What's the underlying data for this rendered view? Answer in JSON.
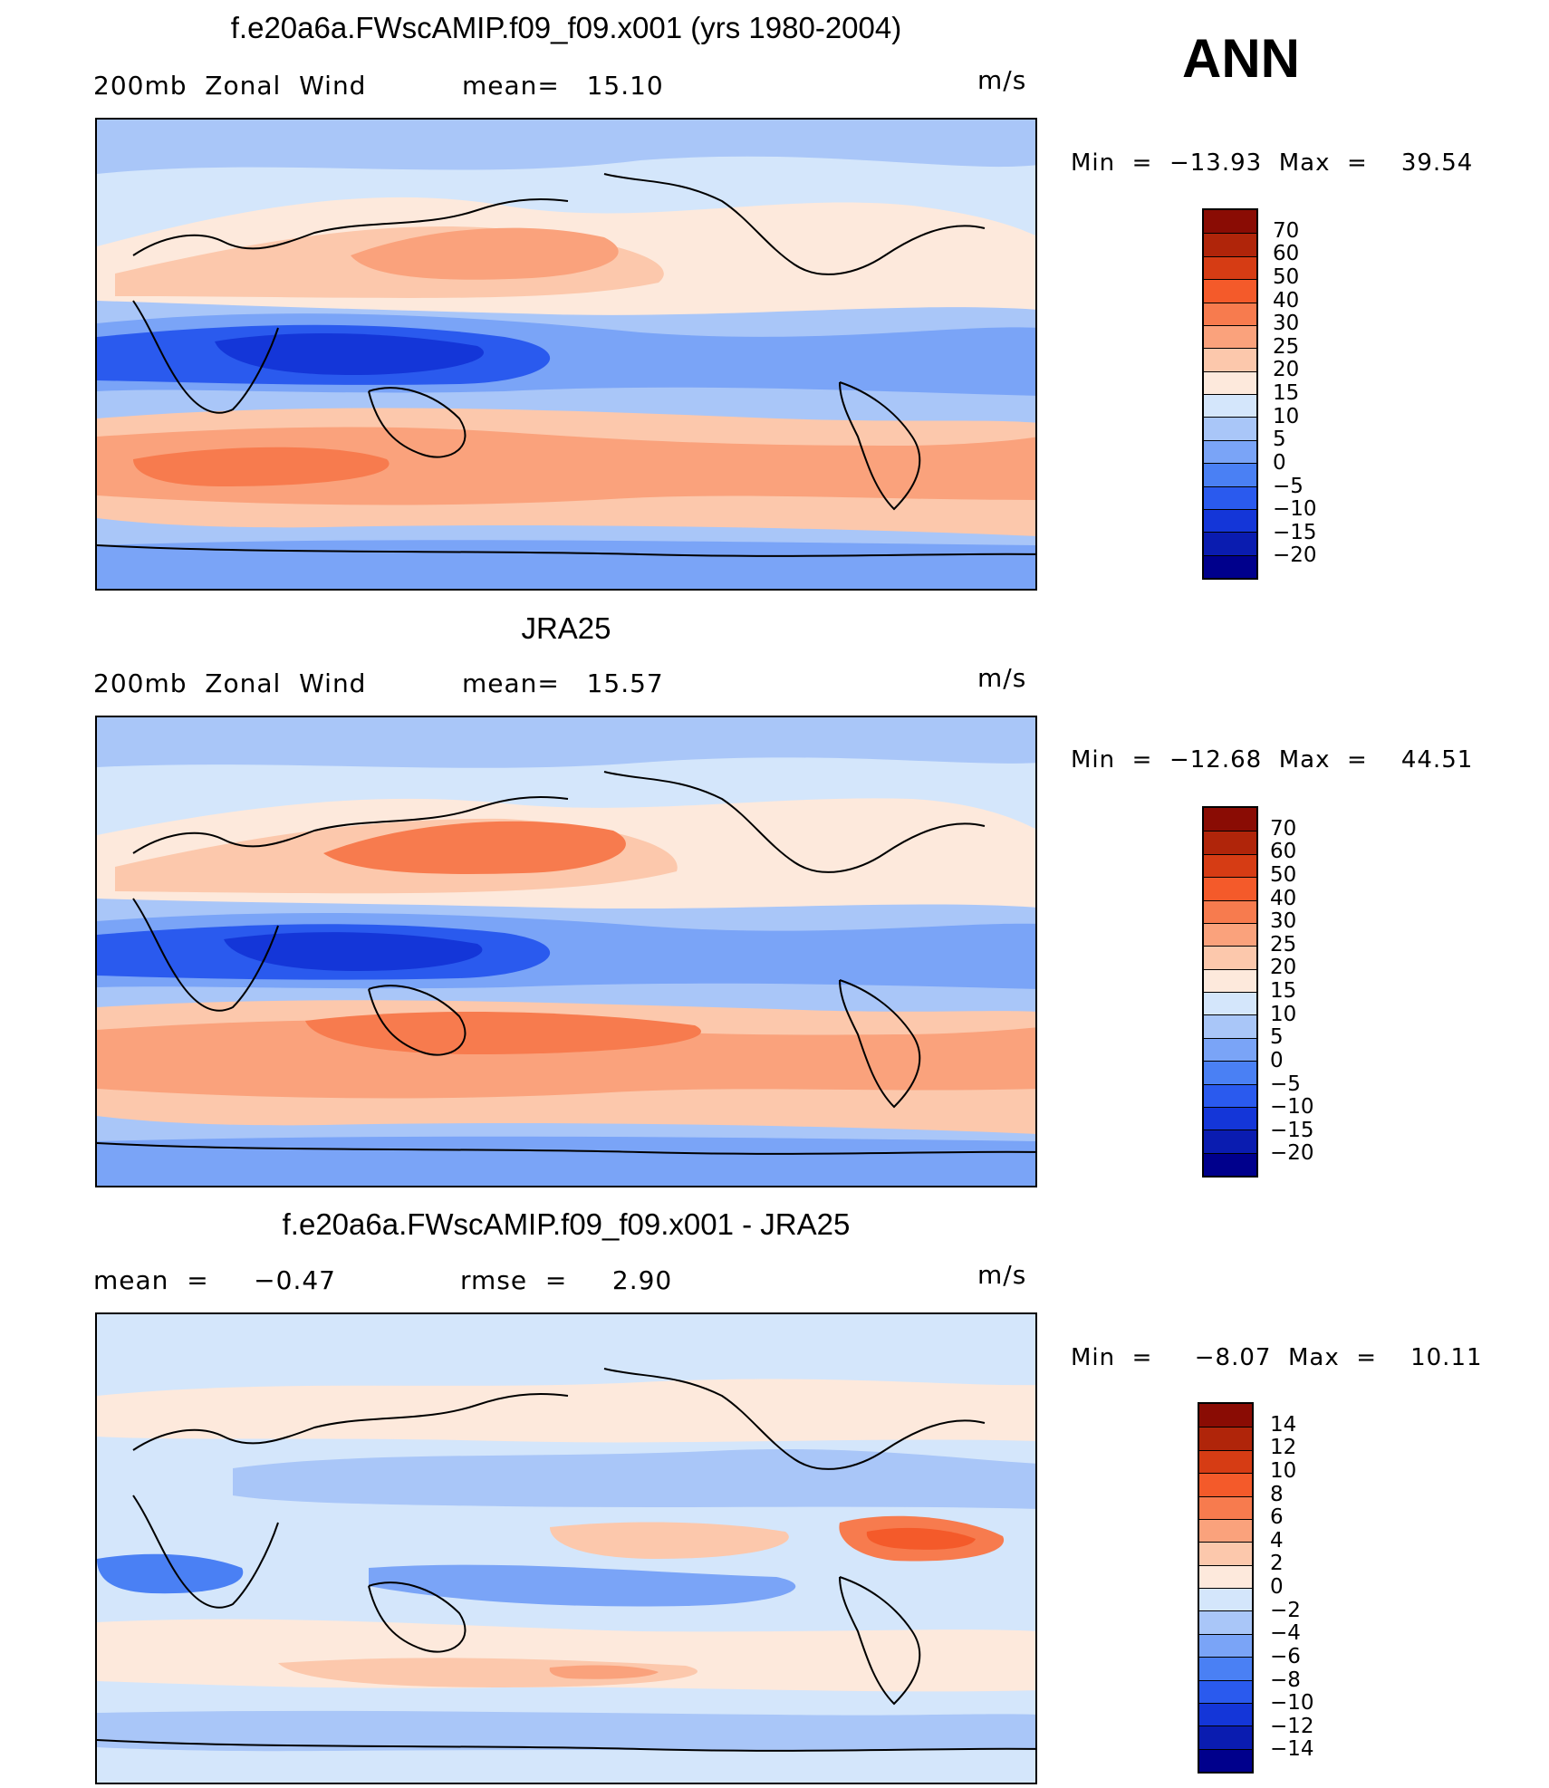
{
  "season": "ANN",
  "palettes": {
    "abs": [
      "#00008c",
      "#0a1cb0",
      "#1436d8",
      "#2a5aee",
      "#4a80f4",
      "#7aa4f7",
      "#a9c6f8",
      "#d4e6fb",
      "#fde9dc",
      "#fcc8ac",
      "#faa27c",
      "#f77b4e",
      "#f45a2a",
      "#d63c14",
      "#b0250a",
      "#8a0c04"
    ],
    "diff": [
      "#00008c",
      "#0a1cb0",
      "#1436d8",
      "#2a5aee",
      "#4a80f4",
      "#7aa4f7",
      "#a9c6f8",
      "#d4e6fb",
      "#fde9dc",
      "#fcc8ac",
      "#faa27c",
      "#f77b4e",
      "#f45a2a",
      "#d63c14",
      "#b0250a",
      "#8a0c04"
    ]
  },
  "panels": [
    {
      "title": "f.e20a6a.FWscAMIP.f09_f09.x001 (yrs 1980-2004)",
      "left_label": "200mb  Zonal  Wind",
      "mid_label": "mean=   15.10",
      "units": "m/s",
      "minmax": "Min  =  −13.93  Max  =    39.54",
      "ticks": [
        "70",
        "60",
        "50",
        "40",
        "30",
        "25",
        "20",
        "15",
        "10",
        "5",
        "0",
        "−5",
        "−10",
        "−15",
        "−20"
      ],
      "palette": "abs"
    },
    {
      "title": "JRA25",
      "left_label": "200mb  Zonal  Wind",
      "mid_label": "mean=   15.57",
      "units": "m/s",
      "minmax": "Min  =  −12.68  Max  =    44.51",
      "ticks": [
        "70",
        "60",
        "50",
        "40",
        "30",
        "25",
        "20",
        "15",
        "10",
        "5",
        "0",
        "−5",
        "−10",
        "−15",
        "−20"
      ],
      "palette": "abs"
    },
    {
      "title": "f.e20a6a.FWscAMIP.f09_f09.x001 - JRA25",
      "left_label": "mean  =     −0.47",
      "mid_label": "rmse  =     2.90",
      "units": "m/s",
      "minmax": "Min  =     −8.07  Max  =    10.11",
      "ticks": [
        "14",
        "12",
        "10",
        "8",
        "6",
        "4",
        "2",
        "0",
        "−2",
        "−4",
        "−6",
        "−8",
        "−10",
        "−12",
        "−14"
      ],
      "palette": "diff"
    }
  ]
}
